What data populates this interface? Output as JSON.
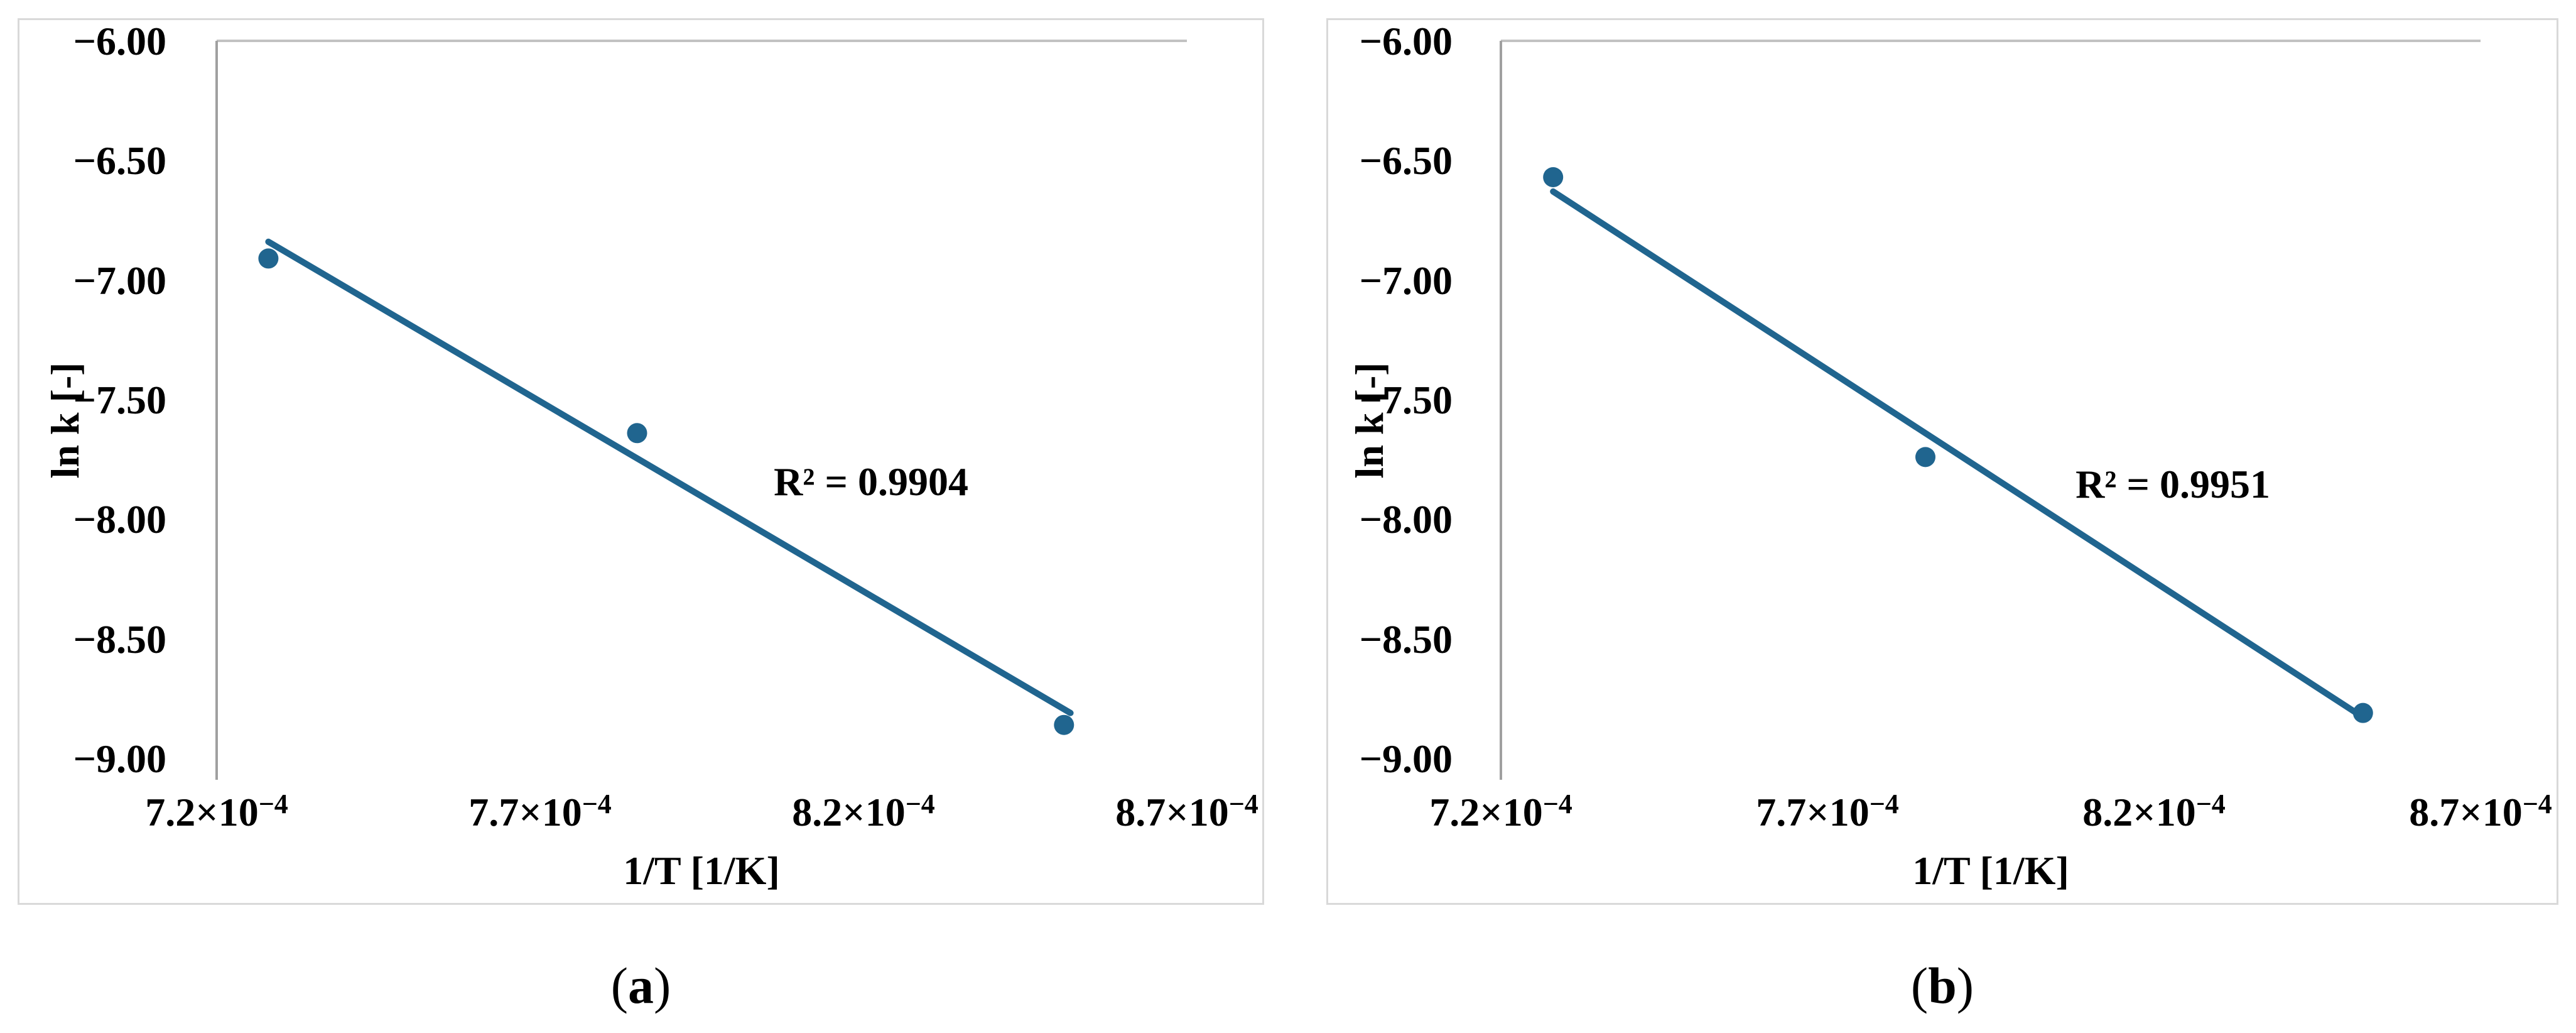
{
  "figure": {
    "description_texts": {
      "caption_a": "(a)",
      "caption_b": "(b)"
    }
  },
  "chart_data": [
    {
      "type": "scatter",
      "panel": "a",
      "title": "",
      "xlabel": "1/T [1/K]",
      "ylabel": "ln k [-]",
      "xlim": [
        0.00072,
        0.00087
      ],
      "xlim_units": [
        7.2,
        8.7
      ],
      "x_unit_note": "x values in multiples of 10^-4 1/K",
      "ylim": [
        -9.0,
        -6.0
      ],
      "grid": false,
      "legend": "none",
      "series_color": "#20658f",
      "y_tick_labels": [
        "−6.00",
        "−6.50",
        "−7.00",
        "−7.50",
        "−8.00",
        "−8.50",
        "−9.00"
      ],
      "x_tick_labels": [
        {
          "base": "7.2×10",
          "exp": "−4"
        },
        {
          "base": "7.7×10",
          "exp": "−4"
        },
        {
          "base": "8.2×10",
          "exp": "−4"
        },
        {
          "base": "8.7×10",
          "exp": "−4"
        }
      ],
      "points": [
        {
          "x": 7.28,
          "y": -6.91
        },
        {
          "x": 7.85,
          "y": -7.64
        },
        {
          "x": 8.51,
          "y": -8.86
        }
      ],
      "trendline": {
        "x1": 7.28,
        "y1": -6.84,
        "x2": 8.52,
        "y2": -8.81
      },
      "r_squared_label": "R² = 0.9904",
      "r_squared_value": 0.9904,
      "caption": {
        "open": "(",
        "letter": "a",
        "close": ")"
      }
    },
    {
      "type": "scatter",
      "panel": "b",
      "title": "",
      "xlabel": "1/T [1/K]",
      "ylabel": "ln k [-]",
      "xlim": [
        0.00072,
        0.00087
      ],
      "xlim_units": [
        7.2,
        8.7
      ],
      "x_unit_note": "x values in multiples of 10^-4 1/K",
      "ylim": [
        -9.0,
        -6.0
      ],
      "grid": false,
      "legend": "none",
      "series_color": "#20658f",
      "y_tick_labels": [
        "−6.00",
        "−6.50",
        "−7.00",
        "−7.50",
        "−8.00",
        "−8.50",
        "−9.00"
      ],
      "x_tick_labels": [
        {
          "base": "7.2×10",
          "exp": "−4"
        },
        {
          "base": "7.7×10",
          "exp": "−4"
        },
        {
          "base": "8.2×10",
          "exp": "−4"
        },
        {
          "base": "8.7×10",
          "exp": "−4"
        }
      ],
      "points": [
        {
          "x": 7.28,
          "y": -6.57
        },
        {
          "x": 7.85,
          "y": -7.74
        },
        {
          "x": 8.52,
          "y": -8.81
        }
      ],
      "trendline": {
        "x1": 7.28,
        "y1": -6.63,
        "x2": 8.51,
        "y2": -8.81
      },
      "r_squared_label": "R² = 0.9951",
      "r_squared_value": 0.9951,
      "caption": {
        "open": "(",
        "letter": "b",
        "close": ")"
      }
    }
  ]
}
